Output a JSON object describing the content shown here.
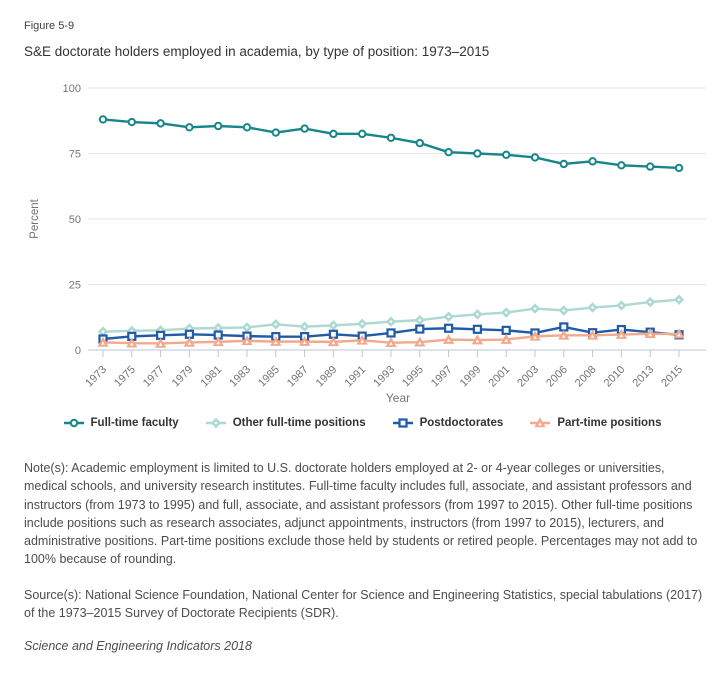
{
  "figure_label": "Figure 5-9",
  "title": "S&E doctorate holders employed in academia, by type of position: 1973–2015",
  "chart_data": {
    "type": "line",
    "title": "S&E doctorate holders employed in academia, by type of position: 1973–2015",
    "xlabel": "Year",
    "ylabel": "Percent",
    "ylim": [
      0,
      100
    ],
    "yticks": [
      0,
      25,
      50,
      75,
      100
    ],
    "grid": true,
    "legend_position": "bottom",
    "categories": [
      "1973",
      "1975",
      "1977",
      "1979",
      "1981",
      "1983",
      "1985",
      "1987",
      "1989",
      "1991",
      "1993",
      "1995",
      "1997",
      "1999",
      "2001",
      "2003",
      "2006",
      "2008",
      "2010",
      "2013",
      "2015"
    ],
    "series": [
      {
        "name": "Full-time faculty",
        "marker": "circle",
        "color": "#17868b",
        "values": [
          88,
          87,
          86.5,
          85,
          85.5,
          85,
          83,
          84.5,
          82.5,
          82.5,
          81,
          79,
          75.5,
          75,
          74.5,
          73.5,
          71,
          72,
          70.5,
          70,
          69.5
        ]
      },
      {
        "name": "Other full-time positions",
        "marker": "diamond",
        "color": "#aed8d2",
        "values": [
          7,
          7.3,
          7.5,
          8.2,
          8.4,
          8.6,
          9.8,
          8.9,
          9.4,
          10,
          10.8,
          11.4,
          12.7,
          13.6,
          14.3,
          15.8,
          15.1,
          16.2,
          17,
          18.3,
          19.2
        ]
      },
      {
        "name": "Postdoctorates",
        "marker": "square",
        "color": "#1f5ba6",
        "values": [
          4.2,
          5.2,
          5.6,
          6,
          5.7,
          5.3,
          5.1,
          5.1,
          6,
          5.3,
          6.5,
          8,
          8.3,
          7.9,
          7.5,
          6.5,
          8.8,
          6.6,
          7.8,
          6.8,
          5.8
        ]
      },
      {
        "name": "Part-time positions",
        "marker": "triangle",
        "color": "#f2a98c",
        "values": [
          2.9,
          2.6,
          2.5,
          2.9,
          3.1,
          3.5,
          3.2,
          3.2,
          3.1,
          3.7,
          2.8,
          3,
          4,
          3.8,
          4,
          5.2,
          5.6,
          5.6,
          5.9,
          6.2,
          6.1
        ]
      }
    ]
  },
  "colors": {
    "gridline": "#e6e6e6",
    "axis_line": "#b9c7da",
    "tick_label": "#757575",
    "axis_title": "#757575",
    "text": "#4d4d4d"
  },
  "notes": "Note(s): Academic employment is limited to U.S. doctorate holders employed at 2- or 4-year colleges or universities, medical schools, and university research institutes. Full-time faculty includes full, associate, and assistant professors and instructors (from 1973 to 1995) and full, associate, and assistant professors (from 1997 to 2015). Other full-time positions include positions such as research associates, adjunct appointments, instructors (from 1997 to 2015), lecturers, and administrative positions. Part-time positions exclude those held by students or retired people. Percentages may not add to 100% because of rounding.",
  "source": "Source(s): National Science Foundation, National Center for Science and Engineering Statistics, special tabulations (2017) of the 1973–2015 Survey of Doctorate Recipients (SDR).",
  "attribution": "Science and Engineering Indicators 2018"
}
